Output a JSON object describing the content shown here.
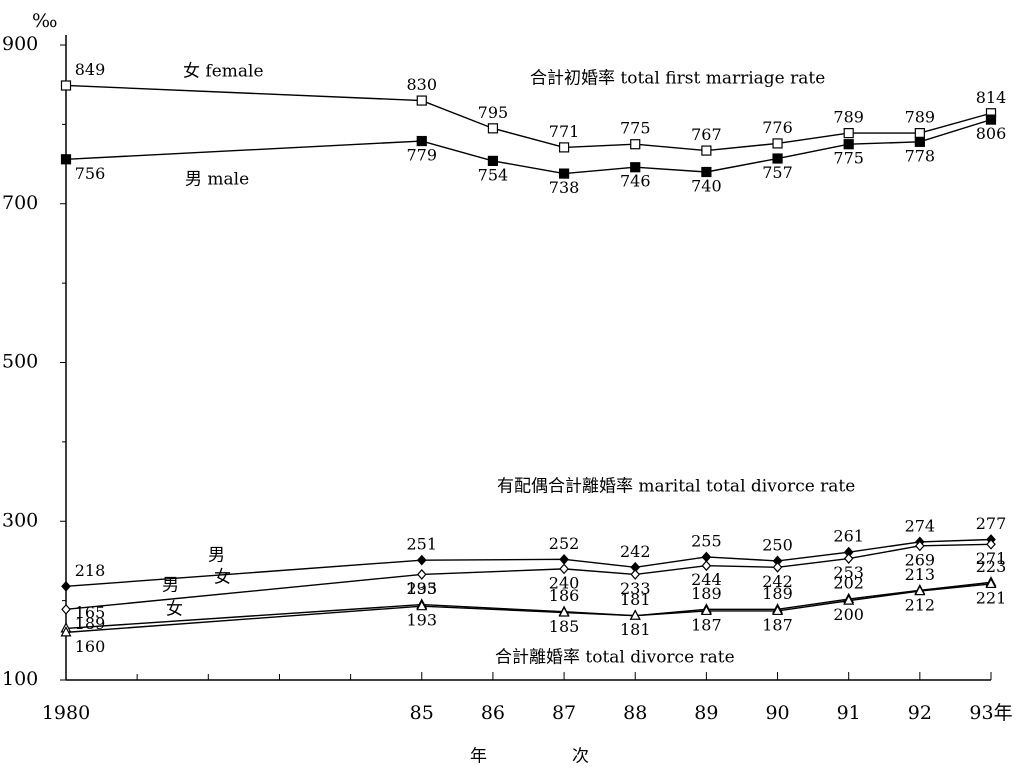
{
  "chart_data": {
    "type": "line",
    "y_unit": "‰",
    "xlabel": "年　　　　　次",
    "annotations": [
      "合計初婚率 total first marriage rate",
      "有配偶合計離婚率 marital total divorce rate",
      "合計離婚率 total divorce rate"
    ],
    "xlim": [
      1980,
      1993
    ],
    "xticks": [
      {
        "value": 1980,
        "label": "1980"
      },
      {
        "value": 1985,
        "label": "85"
      },
      {
        "value": 1986,
        "label": "86"
      },
      {
        "value": 1987,
        "label": "87"
      },
      {
        "value": 1988,
        "label": "88"
      },
      {
        "value": 1989,
        "label": "89"
      },
      {
        "value": 1990,
        "label": "90"
      },
      {
        "value": 1991,
        "label": "91"
      },
      {
        "value": 1992,
        "label": "92"
      },
      {
        "value": 1993,
        "label": "93年"
      }
    ],
    "xminorticks": [
      1981,
      1982,
      1983,
      1984
    ],
    "ylim": [
      100,
      900
    ],
    "yticks": [
      100,
      300,
      500,
      700,
      900
    ],
    "yminorticks": [
      200,
      400,
      600,
      800
    ],
    "series": [
      {
        "name": "女 female",
        "color": "#000000",
        "marker": "square-open",
        "x": [
          1980,
          1985,
          1986,
          1987,
          1988,
          1989,
          1990,
          1991,
          1992,
          1993
        ],
        "values": [
          849,
          830,
          795,
          771,
          775,
          767,
          776,
          789,
          789,
          814
        ]
      },
      {
        "name": "男 male",
        "color": "#000000",
        "marker": "square",
        "x": [
          1980,
          1985,
          1986,
          1987,
          1988,
          1989,
          1990,
          1991,
          1992,
          1993
        ],
        "values": [
          756,
          779,
          754,
          738,
          746,
          740,
          757,
          775,
          778,
          806
        ]
      },
      {
        "name": "男",
        "color": "#000000",
        "marker": "diamond",
        "x": [
          1980,
          1985,
          1987,
          1988,
          1989,
          1990,
          1991,
          1992,
          1993
        ],
        "values": [
          218,
          251,
          252,
          242,
          255,
          250,
          261,
          274,
          277
        ]
      },
      {
        "name": "女",
        "color": "#000000",
        "marker": "diamond-open",
        "x": [
          1980,
          1985,
          1987,
          1988,
          1989,
          1990,
          1991,
          1992,
          1993
        ],
        "values": [
          189,
          233,
          240,
          233,
          244,
          242,
          253,
          269,
          271
        ]
      },
      {
        "name": "男",
        "color": "#000000",
        "marker": "triangle-open",
        "x": [
          1980,
          1985,
          1987,
          1988,
          1989,
          1990,
          1991,
          1992,
          1993
        ],
        "values": [
          165,
          195,
          186,
          181,
          189,
          189,
          202,
          213,
          223
        ]
      },
      {
        "name": "女",
        "color": "#000000",
        "marker": "triangle-open",
        "x": [
          1980,
          1985,
          1987,
          1988,
          1989,
          1990,
          1991,
          1992,
          1993
        ],
        "values": [
          160,
          193,
          185,
          181,
          187,
          187,
          200,
          212,
          221
        ]
      }
    ]
  }
}
